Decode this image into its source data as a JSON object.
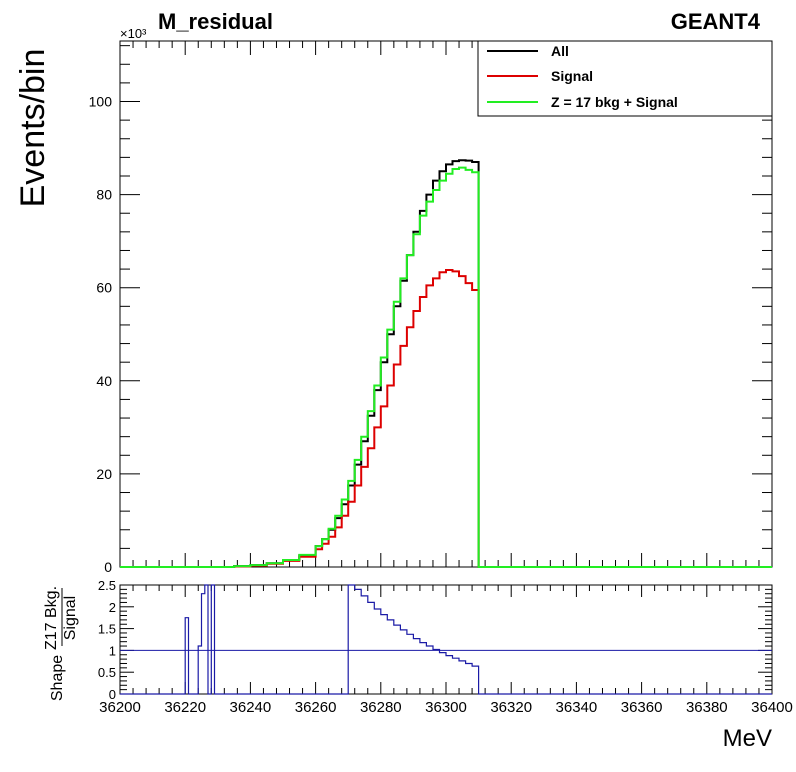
{
  "header": {
    "title": "M_residual",
    "generator": "GEANT4",
    "y_exponent": "×10³"
  },
  "chart_data": [
    {
      "type": "line",
      "step": true,
      "title": "M_residual",
      "ylabel": "Events/bin",
      "xlim": [
        36200,
        36400
      ],
      "ylim": [
        0,
        113
      ],
      "y_multiplier_label": "×10³",
      "x_ticks": [
        36200,
        36220,
        36240,
        36260,
        36280,
        36300,
        36320,
        36340,
        36360,
        36380,
        36400
      ],
      "y_ticks": [
        0,
        20,
        40,
        60,
        80,
        100
      ],
      "legend_position": "top-right",
      "series": [
        {
          "name": "All",
          "color": "#000000",
          "x": [
            36230,
            36235,
            36240,
            36245,
            36250,
            36255,
            36260,
            36262,
            36264,
            36266,
            36268,
            36270,
            36272,
            36274,
            36276,
            36278,
            36280,
            36282,
            36284,
            36286,
            36288,
            36290,
            36292,
            36294,
            36296,
            36298,
            36300,
            36302,
            36304,
            36306,
            36308,
            36310
          ],
          "y": [
            0,
            0.2,
            0.4,
            0.8,
            1.5,
            2.5,
            4.5,
            6,
            8,
            10.5,
            13.5,
            17.5,
            22,
            27,
            32.5,
            38,
            44,
            50,
            56,
            61.5,
            67,
            72,
            76.5,
            80,
            83,
            85,
            86.5,
            87.2,
            87.4,
            87.3,
            87,
            0
          ]
        },
        {
          "name": "Signal",
          "color": "#dd0000",
          "x": [
            36230,
            36235,
            36240,
            36245,
            36250,
            36255,
            36260,
            36262,
            36264,
            36266,
            36268,
            36270,
            36272,
            36274,
            36276,
            36278,
            36280,
            36282,
            36284,
            36286,
            36288,
            36290,
            36292,
            36294,
            36296,
            36298,
            36300,
            36302,
            36304,
            36306,
            36308,
            36310
          ],
          "y": [
            0,
            0.1,
            0.3,
            0.7,
            1.3,
            2.2,
            3.8,
            5,
            6.5,
            8.5,
            11,
            14,
            17.5,
            21.5,
            25.5,
            30,
            34.5,
            39,
            43.5,
            47.5,
            51.5,
            55,
            58,
            60.5,
            62,
            63.3,
            63.8,
            63.5,
            62.5,
            61,
            59.5,
            0
          ]
        },
        {
          "name": "Z = 17 bkg + Signal",
          "color": "#22ee22",
          "x": [
            36230,
            36235,
            36240,
            36245,
            36250,
            36255,
            36260,
            36262,
            36264,
            36266,
            36268,
            36270,
            36272,
            36274,
            36276,
            36278,
            36280,
            36282,
            36284,
            36286,
            36288,
            36290,
            36292,
            36294,
            36296,
            36298,
            36300,
            36302,
            36304,
            36306,
            36308,
            36310
          ],
          "y": [
            0,
            0.2,
            0.4,
            0.8,
            1.5,
            2.6,
            4.5,
            6,
            8.2,
            11,
            14.5,
            18.5,
            23,
            28,
            33.5,
            39,
            45,
            51,
            57,
            62,
            67,
            71.5,
            75.5,
            78.5,
            81,
            83,
            84.5,
            85.5,
            85.8,
            85.3,
            84.8,
            0
          ]
        }
      ]
    },
    {
      "type": "line",
      "step": true,
      "ylabel_lines": [
        "Shape",
        "Z17 Bkg.",
        "Signal"
      ],
      "xlabel": "MeV",
      "xlim": [
        36200,
        36400
      ],
      "ylim": [
        0,
        2.5
      ],
      "x_ticks": [
        36200,
        36220,
        36240,
        36260,
        36280,
        36300,
        36320,
        36340,
        36360,
        36380,
        36400
      ],
      "y_ticks": [
        0,
        0.5,
        1,
        1.5,
        2,
        2.5
      ],
      "reference_line": 1,
      "series": [
        {
          "color": "#1a1aa6",
          "x": [
            36200,
            36220,
            36221,
            36222,
            36224,
            36225,
            36226,
            36227,
            36228,
            36229,
            36230,
            36270,
            36272,
            36274,
            36276,
            36278,
            36280,
            36282,
            36284,
            36286,
            36288,
            36290,
            36292,
            36294,
            36296,
            36298,
            36300,
            36302,
            36304,
            36306,
            36308,
            36310,
            36400
          ],
          "y": [
            0,
            1.75,
            0,
            0,
            1.1,
            2.3,
            2.5,
            0,
            2.5,
            0,
            0,
            2.5,
            2.4,
            2.25,
            2.1,
            1.95,
            1.82,
            1.7,
            1.58,
            1.47,
            1.37,
            1.27,
            1.18,
            1.1,
            1.02,
            0.95,
            0.88,
            0.82,
            0.76,
            0.7,
            0.64,
            0,
            0
          ]
        }
      ]
    }
  ]
}
